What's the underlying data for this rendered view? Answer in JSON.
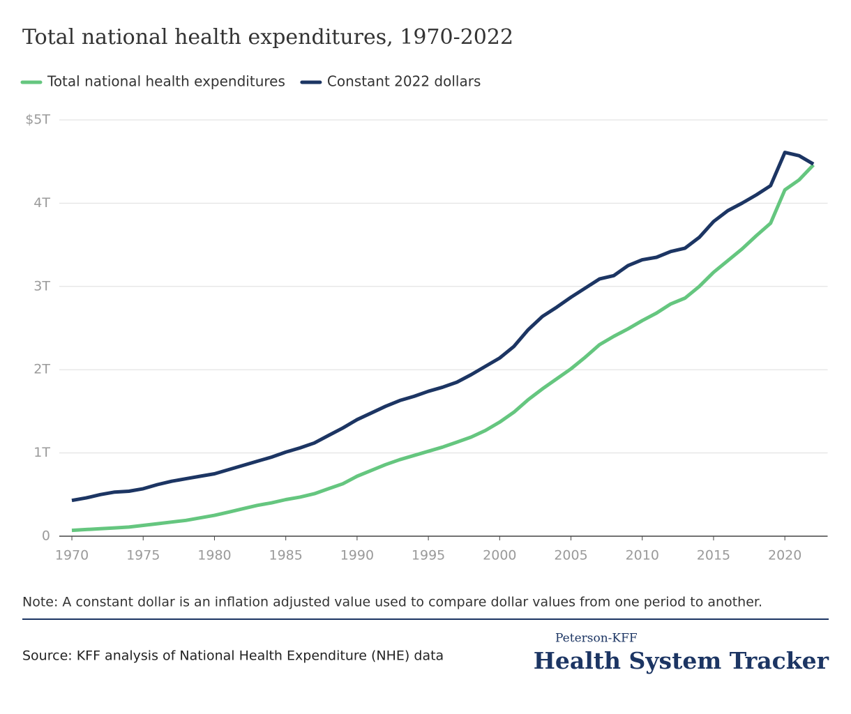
{
  "chart_data": {
    "type": "line",
    "title": "Total national health expenditures, 1970-2022",
    "x": [
      1970,
      1971,
      1972,
      1973,
      1974,
      1975,
      1976,
      1977,
      1978,
      1979,
      1980,
      1981,
      1982,
      1983,
      1984,
      1985,
      1986,
      1987,
      1988,
      1989,
      1990,
      1991,
      1992,
      1993,
      1994,
      1995,
      1996,
      1997,
      1998,
      1999,
      2000,
      2001,
      2002,
      2003,
      2004,
      2005,
      2006,
      2007,
      2008,
      2009,
      2010,
      2011,
      2012,
      2013,
      2014,
      2015,
      2016,
      2017,
      2018,
      2019,
      2020,
      2021,
      2022
    ],
    "series": [
      {
        "name": "Total national health expenditures",
        "color": "#65c67f",
        "values": [
          0.07,
          0.08,
          0.09,
          0.1,
          0.11,
          0.13,
          0.15,
          0.17,
          0.19,
          0.22,
          0.25,
          0.29,
          0.33,
          0.37,
          0.4,
          0.44,
          0.47,
          0.51,
          0.57,
          0.63,
          0.72,
          0.79,
          0.86,
          0.92,
          0.97,
          1.02,
          1.07,
          1.13,
          1.19,
          1.27,
          1.37,
          1.49,
          1.64,
          1.77,
          1.89,
          2.01,
          2.15,
          2.3,
          2.4,
          2.49,
          2.59,
          2.68,
          2.79,
          2.86,
          3.0,
          3.17,
          3.31,
          3.45,
          3.61,
          3.76,
          4.16,
          4.28,
          4.46
        ]
      },
      {
        "name": "Constant 2022 dollars",
        "color": "#1c3563",
        "values": [
          0.43,
          0.46,
          0.5,
          0.53,
          0.54,
          0.57,
          0.62,
          0.66,
          0.69,
          0.72,
          0.75,
          0.8,
          0.85,
          0.9,
          0.95,
          1.01,
          1.06,
          1.12,
          1.21,
          1.3,
          1.4,
          1.48,
          1.56,
          1.63,
          1.68,
          1.74,
          1.79,
          1.85,
          1.94,
          2.04,
          2.14,
          2.28,
          2.48,
          2.64,
          2.75,
          2.87,
          2.98,
          3.09,
          3.13,
          3.25,
          3.32,
          3.35,
          3.42,
          3.46,
          3.59,
          3.78,
          3.91,
          4.0,
          4.1,
          4.21,
          4.61,
          4.57,
          4.47
        ]
      }
    ],
    "xlim": [
      1969,
      2023
    ],
    "xticks": [
      1970,
      1975,
      1980,
      1985,
      1990,
      1995,
      2000,
      2005,
      2010,
      2015,
      2020
    ],
    "ylim": [
      0,
      5
    ],
    "yticks": [
      0,
      {
        "value": 1,
        "label": "1T"
      },
      {
        "value": 2,
        "label": "2T"
      },
      {
        "value": 3,
        "label": "3T"
      },
      {
        "value": 4,
        "label": "4T"
      },
      {
        "value": 5,
        "label": "$5T"
      }
    ],
    "grid": true,
    "note": "Note: A constant dollar is an inflation adjusted value used to compare dollar values from one period to another.",
    "source": "Source: KFF analysis of National Health Expenditure (NHE) data",
    "logo_top": "Peterson-KFF",
    "logo_main": "Health System Tracker"
  }
}
